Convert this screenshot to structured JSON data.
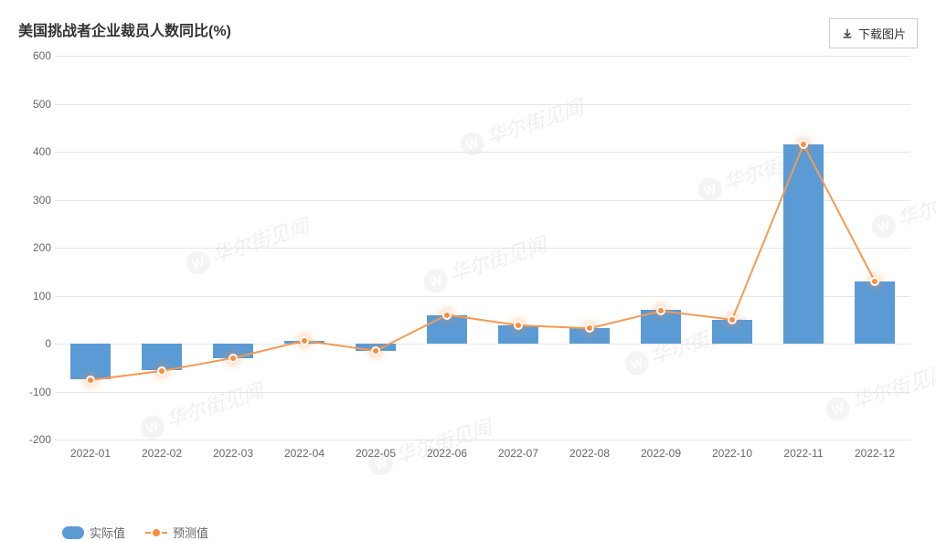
{
  "title": "美国挑战者企业裁员人数同比(%)",
  "download_button_label": "下载图片",
  "chart": {
    "type": "bar+line",
    "categories": [
      "2022-01",
      "2022-02",
      "2022-03",
      "2022-04",
      "2022-05",
      "2022-06",
      "2022-07",
      "2022-08",
      "2022-09",
      "2022-10",
      "2022-11",
      "2022-12"
    ],
    "bar_values": [
      -75,
      -55,
      -30,
      6,
      -15,
      60,
      38,
      32,
      70,
      50,
      415,
      130
    ],
    "line_values": [
      -76,
      -57,
      -30,
      6,
      -15,
      60,
      38,
      32,
      68,
      50,
      415,
      130
    ],
    "bar_color": "#5b9bd5",
    "line_color": "#f39b55",
    "marker_fill": "#ff8c3c",
    "marker_border": "#ffffff",
    "ylim": [
      -200,
      600
    ],
    "ytick_step": 100,
    "grid_color": "#e6e6e6",
    "axis_text_color": "#666666",
    "background_color": "#ffffff",
    "bar_width_pct": 0.56,
    "line_width": 2,
    "marker_size": 10,
    "axis_fontsize": 12,
    "title_fontsize": 16
  },
  "legend": {
    "bar_label": "实际值",
    "line_label": "预测值"
  },
  "watermark_text": "华尔街见闻"
}
